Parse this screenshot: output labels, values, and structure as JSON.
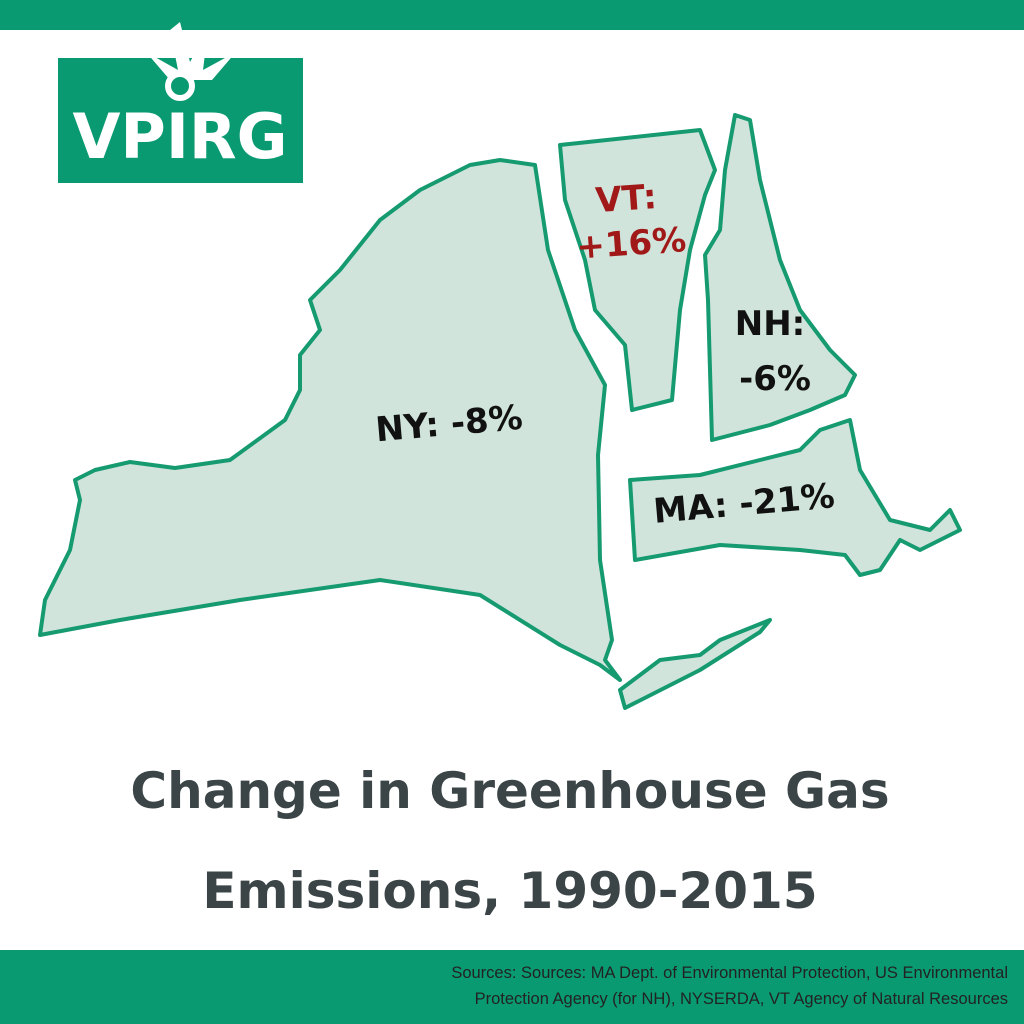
{
  "logo": {
    "text": "VPIRG"
  },
  "map": {
    "states": [
      {
        "id": "NY",
        "label_lines": [
          "NY: -8%"
        ]
      },
      {
        "id": "VT",
        "label_lines": [
          "VT:",
          "+16%"
        ]
      },
      {
        "id": "NH",
        "label_lines": [
          "NH:",
          "-6%"
        ]
      },
      {
        "id": "MA",
        "label_lines": [
          "MA: -21%"
        ]
      }
    ]
  },
  "title": {
    "lines": [
      "Change in Greenhouse Gas",
      "Emissions, 1990-2015"
    ]
  },
  "footer": {
    "sources_lines": [
      "Sources: Sources: MA Dept. of Environmental Protection, US Environmental",
      "Protection Agency (for NH), NYSERDA, VT Agency of Natural Resources"
    ]
  }
}
